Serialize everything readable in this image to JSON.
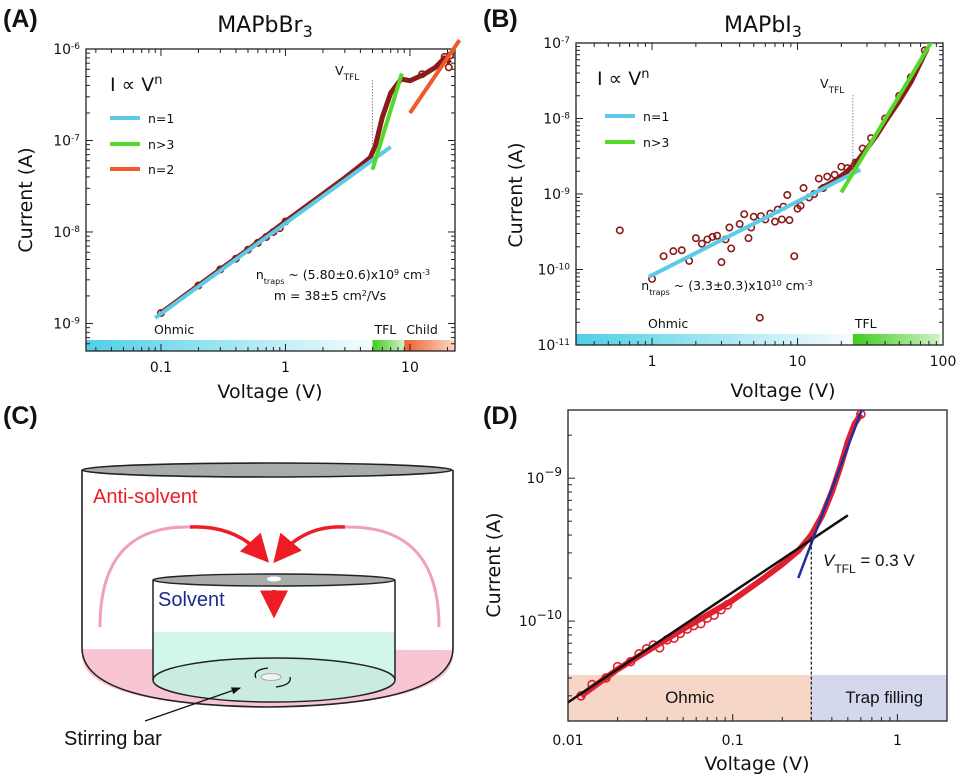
{
  "chart_data": [
    {
      "panel": "(A)",
      "type": "scatter",
      "title": {
        "main": "MAPbBr",
        "sub": "3"
      },
      "xlabel": "Voltage (V)",
      "ylabel": "Current (A)",
      "xscale": "log",
      "yscale": "log",
      "xlim": [
        0.025,
        23
      ],
      "ylim": [
        5e-10,
        1e-06
      ],
      "xticks": [
        {
          "v": 0.1,
          "label": "0.1"
        },
        {
          "v": 1,
          "label": "1"
        },
        {
          "v": 10,
          "label": "10"
        }
      ],
      "yticks": [
        {
          "v": 1e-09,
          "base": "10",
          "exp": "-9"
        },
        {
          "v": 1e-08,
          "base": "10",
          "exp": "-8"
        },
        {
          "v": 1e-07,
          "base": "10",
          "exp": "-7"
        },
        {
          "v": 1e-06,
          "base": "10",
          "exp": "-6"
        }
      ],
      "law": {
        "text": "I ∝ V",
        "exp": "n"
      },
      "data_color": "#8b1a1a",
      "data_curve": [
        [
          0.1,
          1.3e-09
        ],
        [
          0.2,
          2.6e-09
        ],
        [
          0.3,
          3.9e-09
        ],
        [
          0.5,
          6.4e-09
        ],
        [
          1,
          1.3e-08
        ],
        [
          2,
          2.6e-08
        ],
        [
          3,
          3.9e-08
        ],
        [
          4,
          5.3e-08
        ],
        [
          4.8,
          6.5e-08
        ],
        [
          5.3,
          9e-08
        ],
        [
          6,
          1.8e-07
        ],
        [
          7,
          3.3e-07
        ],
        [
          8.5,
          4.7e-07
        ],
        [
          10,
          4.5e-07
        ],
        [
          13,
          5.3e-07
        ],
        [
          16,
          6.3e-07
        ],
        [
          19,
          8e-07
        ],
        [
          21,
          7e-07
        ]
      ],
      "points": [
        [
          0.1,
          1.3e-09
        ],
        [
          0.2,
          2.6e-09
        ],
        [
          0.3,
          3.9e-09
        ],
        [
          0.4,
          5.1e-09
        ],
        [
          0.5,
          6.4e-09
        ],
        [
          0.6,
          7.6e-09
        ],
        [
          0.7,
          8.8e-09
        ],
        [
          0.8,
          1e-08
        ],
        [
          0.9,
          1.1e-08
        ],
        [
          1,
          1.3e-08
        ],
        [
          12.5,
          5.3e-07
        ],
        [
          19,
          8.2e-07
        ],
        [
          20.5,
          6.3e-07
        ],
        [
          21,
          8.5e-07
        ]
      ],
      "fits": [
        {
          "name": "n=1",
          "color": "#5ccbe9",
          "from": [
            0.09,
            1.15e-09
          ],
          "to": [
            7,
            8.5e-08
          ]
        },
        {
          "name": "n>3",
          "color": "#55d82a",
          "from": [
            5,
            4.8e-08
          ],
          "to": [
            8.6,
            5.4e-07
          ]
        },
        {
          "name": "n=2",
          "color": "#f05a28",
          "from": [
            10,
            2e-07
          ],
          "to": [
            25,
            1.25e-06
          ]
        }
      ],
      "vtfl": {
        "v": 5,
        "label": "V",
        "sub": "TFL"
      },
      "annotations": [
        {
          "parts": [
            "n",
            "traps",
            " ~ (5.80±0.6)x10",
            "9",
            " cm",
            "-3"
          ]
        },
        {
          "parts": [
            "m = 38±5 cm",
            "2",
            "/Vs"
          ]
        }
      ],
      "regions": [
        {
          "label": "Ohmic",
          "from": 0.025,
          "to": 5,
          "color": "#4fcfe6"
        },
        {
          "label": "TFL",
          "from": 5,
          "to": 9,
          "color": "#3fcc1f"
        },
        {
          "label": "Child",
          "from": 9,
          "to": 23,
          "color": "#f0602e"
        }
      ]
    },
    {
      "panel": "(B)",
      "type": "scatter",
      "title": {
        "main": "MAPbI",
        "sub": "3"
      },
      "xlabel": "Voltage (V)",
      "ylabel": "Current (A)",
      "xscale": "log",
      "yscale": "log",
      "xlim": [
        0.3,
        100
      ],
      "ylim": [
        1e-11,
        1e-07
      ],
      "xticks": [
        {
          "v": 1,
          "label": "1"
        },
        {
          "v": 10,
          "label": "10"
        },
        {
          "v": 100,
          "label": "100"
        }
      ],
      "yticks": [
        {
          "v": 1e-11,
          "base": "10",
          "exp": "-11"
        },
        {
          "v": 1e-10,
          "base": "10",
          "exp": "-10"
        },
        {
          "v": 1e-09,
          "base": "10",
          "exp": "-9"
        },
        {
          "v": 1e-08,
          "base": "10",
          "exp": "-8"
        },
        {
          "v": 1e-07,
          "base": "10",
          "exp": "-7"
        }
      ],
      "law": {
        "text": "I ∝ V",
        "exp": "n"
      },
      "data_color": "#8b1a1a",
      "data_curve": [
        [
          14,
          1.15e-09
        ],
        [
          18,
          1.5e-09
        ],
        [
          22,
          2e-09
        ],
        [
          26,
          2.8e-09
        ],
        [
          30,
          4e-09
        ],
        [
          35,
          6e-09
        ],
        [
          40,
          9e-09
        ],
        [
          50,
          1.7e-08
        ],
        [
          60,
          3e-08
        ],
        [
          70,
          5.5e-08
        ],
        [
          78,
          8.5e-08
        ]
      ],
      "points": [
        [
          0.6,
          3.3e-10
        ],
        [
          1,
          7.5e-11
        ],
        [
          1.2,
          1.5e-10
        ],
        [
          1.4,
          1.75e-10
        ],
        [
          1.6,
          1.8e-10
        ],
        [
          1.8,
          1.3e-10
        ],
        [
          2,
          2.6e-10
        ],
        [
          2.2,
          2.2e-10
        ],
        [
          2.4,
          2.5e-10
        ],
        [
          2.6,
          2.7e-10
        ],
        [
          2.8,
          2.8e-10
        ],
        [
          3,
          1.25e-10
        ],
        [
          3.2,
          2.5e-10
        ],
        [
          3.4,
          3.6e-10
        ],
        [
          3.5,
          1.9e-10
        ],
        [
          4,
          4e-10
        ],
        [
          4.3,
          5.4e-10
        ],
        [
          4.6,
          2.6e-10
        ],
        [
          4.8,
          3.6e-10
        ],
        [
          5,
          5e-10
        ],
        [
          5.5,
          2.3e-11
        ],
        [
          5.6,
          5.1e-10
        ],
        [
          6,
          4.6e-10
        ],
        [
          6.5,
          5.5e-10
        ],
        [
          7,
          4.3e-10
        ],
        [
          7.3,
          6.2e-10
        ],
        [
          7.8,
          4.6e-10
        ],
        [
          8,
          6.8e-10
        ],
        [
          8.5,
          9.7e-10
        ],
        [
          8.8,
          4.5e-10
        ],
        [
          9.5,
          1.5e-10
        ],
        [
          10,
          6.4e-10
        ],
        [
          10.5,
          7e-10
        ],
        [
          11,
          1.2e-09
        ],
        [
          12,
          9e-10
        ],
        [
          13,
          1e-09
        ],
        [
          14,
          1.6e-09
        ],
        [
          15,
          1.2e-09
        ],
        [
          16,
          1.7e-09
        ],
        [
          18,
          1.8e-09
        ],
        [
          20,
          2.3e-09
        ],
        [
          22,
          2.2e-09
        ],
        [
          25,
          2.6e-09
        ],
        [
          28,
          4e-09
        ],
        [
          32,
          5.5e-09
        ],
        [
          40,
          1e-08
        ],
        [
          50,
          2e-08
        ],
        [
          60,
          3.5e-08
        ],
        [
          75,
          8e-08
        ]
      ],
      "fits": [
        {
          "name": "n=1",
          "color": "#5ccbe9",
          "from": [
            0.95,
            8e-11
          ],
          "to": [
            27,
            2.1e-09
          ]
        },
        {
          "name": "n>3",
          "color": "#55d82a",
          "from": [
            20,
            1.05e-09
          ],
          "to": [
            85,
            1.1e-07
          ]
        }
      ],
      "vtfl": {
        "v": 24,
        "label": "V",
        "sub": "TFL"
      },
      "annotations": [
        {
          "parts": [
            "n",
            "traps",
            " ~ (3.3±0.3)x10",
            "10",
            " cm",
            "-3"
          ]
        }
      ],
      "regions": [
        {
          "label": "Ohmic",
          "from": 0.3,
          "to": 24,
          "color": "#4fcfe6"
        },
        {
          "label": "TFL",
          "from": 24,
          "to": 95,
          "color": "#3fcc1f"
        }
      ]
    },
    {
      "panel": "(D)",
      "type": "scatter",
      "xlabel": "Voltage (V)",
      "ylabel": "Current (A)",
      "xscale": "log",
      "yscale": "log",
      "xlim": [
        0.01,
        2
      ],
      "ylim": [
        2e-11,
        3e-09
      ],
      "xticks": [
        {
          "v": 0.01,
          "label": "0.01"
        },
        {
          "v": 0.1,
          "label": "0.1"
        },
        {
          "v": 1,
          "label": "1"
        }
      ],
      "yticks": [
        {
          "v": 1e-10,
          "base": "10",
          "exp": "−10"
        },
        {
          "v": 1e-09,
          "base": "10",
          "exp": "−9"
        }
      ],
      "data_color": "#e0202e",
      "data_curve": [
        [
          0.012,
          3e-11
        ],
        [
          0.02,
          4.6e-11
        ],
        [
          0.05,
          8.8e-11
        ],
        [
          0.1,
          1.4e-10
        ],
        [
          0.15,
          1.95e-10
        ],
        [
          0.2,
          2.5e-10
        ],
        [
          0.25,
          3.1e-10
        ],
        [
          0.3,
          4e-10
        ],
        [
          0.35,
          5.5e-10
        ],
        [
          0.4,
          8e-10
        ],
        [
          0.45,
          1.2e-09
        ],
        [
          0.5,
          1.8e-09
        ],
        [
          0.55,
          2.4e-09
        ],
        [
          0.6,
          2.8e-09
        ]
      ],
      "points": [
        [
          0.012,
          3e-11
        ],
        [
          0.014,
          3.6e-11
        ],
        [
          0.017,
          4e-11
        ],
        [
          0.02,
          4.8e-11
        ],
        [
          0.024,
          5.2e-11
        ],
        [
          0.027,
          5.9e-11
        ],
        [
          0.03,
          6.4e-11
        ],
        [
          0.033,
          6.8e-11
        ],
        [
          0.036,
          6.5e-11
        ],
        [
          0.04,
          7.4e-11
        ],
        [
          0.044,
          7.6e-11
        ],
        [
          0.048,
          8.2e-11
        ],
        [
          0.053,
          8.8e-11
        ],
        [
          0.058,
          9.3e-11
        ],
        [
          0.064,
          9.6e-11
        ],
        [
          0.07,
          1.05e-10
        ],
        [
          0.077,
          1.1e-10
        ],
        [
          0.085,
          1.2e-10
        ],
        [
          0.093,
          1.3e-10
        ],
        [
          0.6,
          2.8e-09
        ]
      ],
      "fits": [
        {
          "color": "#111111",
          "from": [
            0.01,
            2.7e-11
          ],
          "to": [
            0.5,
            5.5e-10
          ]
        },
        {
          "color": "#1f2fa0",
          "from": [
            0.25,
            2e-10
          ],
          "to": [
            0.62,
            3.2e-09
          ]
        }
      ],
      "vtfl": {
        "v": 0.3,
        "label": "V",
        "sub": "TFL",
        "value": " = 0.3 V"
      },
      "regions": [
        {
          "label": "Ohmic",
          "from": 0.01,
          "to": 0.3,
          "color": "#f6d6c6",
          "text_color": "#e0202a"
        },
        {
          "label": "Trap filling",
          "from": 0.3,
          "to": 2,
          "color": "#d3d8ed",
          "text_color": "#1a2a8a"
        }
      ]
    }
  ],
  "diagram_c": {
    "panel": "(C)",
    "anti_solvent": "Anti-solvent",
    "solvent": "Solvent",
    "stirring_bar": "Stirring bar",
    "colors": {
      "anti_solvent": "#ee1c25",
      "solvent": "#1b2a8c",
      "outer_liquid": "#f8c6d3",
      "inner_liquid": "#d2f5ec",
      "arc": "#f0a0b8"
    }
  }
}
